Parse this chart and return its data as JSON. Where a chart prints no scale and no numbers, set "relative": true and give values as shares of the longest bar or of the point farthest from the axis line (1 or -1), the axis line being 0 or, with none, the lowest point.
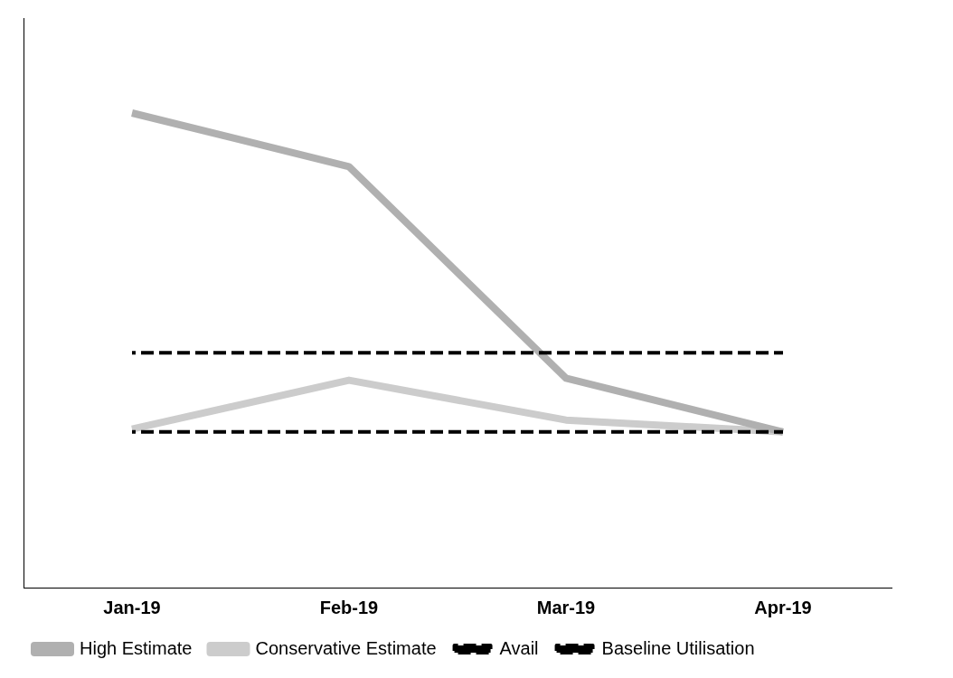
{
  "chart_data": {
    "type": "line",
    "relative": true,
    "categories": [
      "Jan-19",
      "Feb-19",
      "Mar-19",
      "Apr-19"
    ],
    "series": [
      {
        "name": "High Estimate",
        "color": "#b0b0b0",
        "values": [
          1,
          0.887,
          0.441,
          0.328
        ]
      },
      {
        "name": "Conservative Estimate",
        "color": "#cccccc",
        "values": [
          0.334,
          0.437,
          0.353,
          0.328
        ]
      },
      {
        "name": "Avail",
        "color": "#000000",
        "values": [
          0.495,
          0.495,
          0.495,
          0.495
        ],
        "line_style": "dashed"
      },
      {
        "name": "Baseline Utilisation",
        "color": "#000000",
        "values": [
          0.328,
          0.328,
          0.328,
          0.328
        ],
        "line_style": "dashed"
      }
    ],
    "grid": false,
    "legend": "bottom",
    "marker": "none",
    "line_style": "solid"
  }
}
